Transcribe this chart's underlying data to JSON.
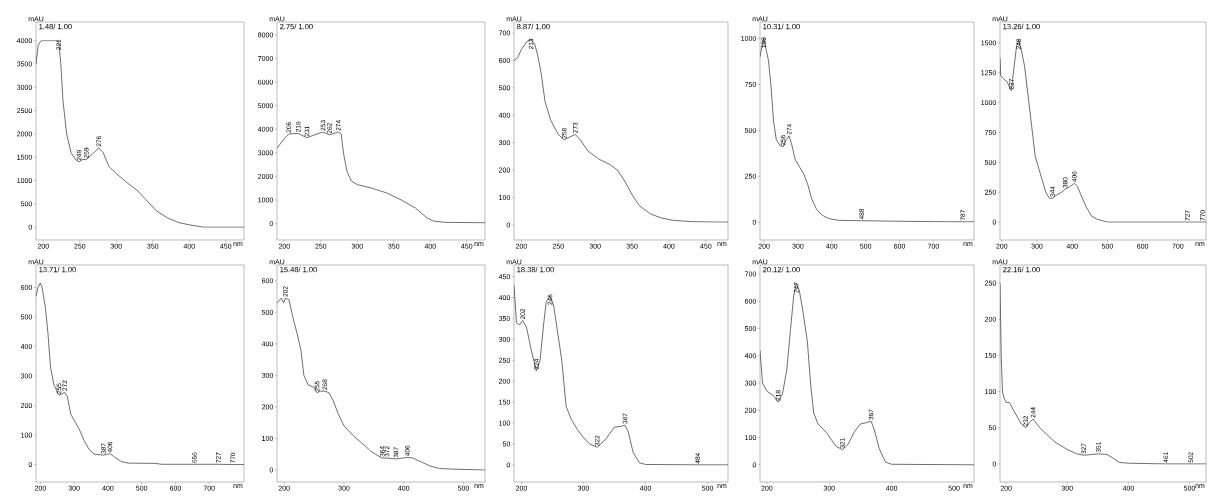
{
  "chart_data": [
    {
      "type": "line",
      "title": "1.48/ 1.00",
      "ylabel": "mAU",
      "xlabel": "nm",
      "color": "#303030",
      "xlim": [
        190,
        475
      ],
      "xticks": [
        200,
        250,
        300,
        350,
        400,
        450
      ],
      "ylim": [
        -275,
        4400
      ],
      "yticks": [
        0,
        500,
        1000,
        1500,
        2000,
        2500,
        3000,
        3500,
        4000
      ],
      "x": [
        190,
        193,
        197,
        221,
        224,
        227,
        232,
        238,
        244,
        249,
        254,
        259,
        266,
        276,
        282,
        290,
        300,
        315,
        328,
        340,
        355,
        370,
        385,
        400,
        420,
        475
      ],
      "values": [
        3500,
        3900,
        4000,
        4000,
        3500,
        2700,
        2000,
        1600,
        1450,
        1400,
        1450,
        1450,
        1550,
        1700,
        1600,
        1300,
        1150,
        950,
        800,
        600,
        350,
        200,
        100,
        50,
        0,
        0
      ],
      "annotations": [
        {
          "text": "221",
          "x": 221,
          "y": 4000
        },
        {
          "text": "249",
          "x": 249,
          "y": 1400
        },
        {
          "text": "259",
          "x": 259,
          "y": 1450
        },
        {
          "text": "276",
          "x": 276,
          "y": 1700
        }
      ]
    },
    {
      "type": "line",
      "title": "2.75/ 1.00",
      "ylabel": "mAU",
      "xlabel": "nm",
      "color": "#303030",
      "xlim": [
        190,
        475
      ],
      "xticks": [
        200,
        250,
        300,
        350,
        400,
        450
      ],
      "ylim": [
        -700,
        8550
      ],
      "yticks": [
        0,
        1000,
        2000,
        3000,
        4000,
        5000,
        6000,
        7000,
        8000
      ],
      "x": [
        190,
        200,
        206,
        219,
        231,
        245,
        253,
        262,
        274,
        278,
        281,
        286,
        292,
        300,
        320,
        340,
        360,
        380,
        395,
        405,
        420,
        475
      ],
      "values": [
        3200,
        3600,
        3800,
        3820,
        3640,
        3800,
        3880,
        3760,
        3880,
        3800,
        3000,
        2200,
        1800,
        1650,
        1500,
        1300,
        1000,
        650,
        250,
        100,
        50,
        30
      ],
      "annotations": [
        {
          "text": "206",
          "x": 206,
          "y": 3800
        },
        {
          "text": "219",
          "x": 219,
          "y": 3820
        },
        {
          "text": "231",
          "x": 231,
          "y": 3640
        },
        {
          "text": "253",
          "x": 253,
          "y": 3880
        },
        {
          "text": "262",
          "x": 262,
          "y": 3760
        },
        {
          "text": "274",
          "x": 274,
          "y": 3880
        }
      ]
    },
    {
      "type": "line",
      "title": "8.87/ 1.00",
      "ylabel": "mAU",
      "xlabel": "nm",
      "color": "#303030",
      "xlim": [
        190,
        480
      ],
      "xticks": [
        200,
        250,
        300,
        350,
        400,
        450
      ],
      "ylim": [
        -55,
        740
      ],
      "yticks": [
        0,
        100,
        200,
        300,
        400,
        500,
        600,
        700
      ],
      "x": [
        190,
        195,
        200,
        208,
        213,
        218,
        222,
        227,
        232,
        240,
        250,
        258,
        265,
        273,
        280,
        290,
        305,
        320,
        330,
        340,
        350,
        360,
        375,
        390,
        405,
        430,
        480
      ],
      "values": [
        600,
        610,
        640,
        670,
        675,
        660,
        620,
        550,
        450,
        380,
        330,
        310,
        320,
        330,
        310,
        270,
        240,
        220,
        200,
        160,
        110,
        70,
        40,
        25,
        17,
        12,
        10
      ],
      "annotations": [
        {
          "text": "213",
          "x": 213,
          "y": 675
        },
        {
          "text": "258",
          "x": 258,
          "y": 310
        },
        {
          "text": "273",
          "x": 273,
          "y": 330
        }
      ]
    },
    {
      "type": "line",
      "title": "10.31/ 1.00",
      "ylabel": "mAU",
      "xlabel": "nm",
      "color": "#303030",
      "xlim": [
        188,
        820
      ],
      "xticks": [
        200,
        300,
        400,
        500,
        600,
        700
      ],
      "ylim": [
        -97,
        1090
      ],
      "yticks": [
        0,
        250,
        500,
        750,
        1000
      ],
      "x": [
        188,
        193,
        199,
        205,
        213,
        220,
        228,
        236,
        246,
        256,
        265,
        274,
        282,
        292,
        305,
        318,
        330,
        340,
        355,
        370,
        390,
        420,
        488,
        600,
        700,
        787,
        820
      ],
      "values": [
        900,
        950,
        1000,
        950,
        880,
        750,
        550,
        450,
        420,
        410,
        450,
        470,
        420,
        340,
        300,
        260,
        200,
        130,
        70,
        40,
        20,
        10,
        8,
        5,
        3,
        2,
        2
      ],
      "annotations": [
        {
          "text": "199",
          "x": 199,
          "y": 1000
        },
        {
          "text": "256",
          "x": 256,
          "y": 410
        },
        {
          "text": "274",
          "x": 274,
          "y": 470
        },
        {
          "text": "488",
          "x": 488,
          "y": 8
        },
        {
          "text": "787",
          "x": 787,
          "y": 2
        }
      ]
    },
    {
      "type": "line",
      "title": "13.26/ 1.00",
      "ylabel": "mAU",
      "xlabel": "nm",
      "color": "#303030",
      "xlim": [
        195,
        780
      ],
      "xticks": [
        200,
        300,
        400,
        500,
        600,
        700
      ],
      "ylim": [
        -150,
        1675
      ],
      "yticks": [
        0,
        250,
        500,
        750,
        1000,
        1250,
        1500
      ],
      "x": [
        195,
        197,
        205,
        215,
        227,
        235,
        242,
        248,
        255,
        265,
        275,
        285,
        295,
        305,
        315,
        325,
        335,
        344,
        355,
        370,
        380,
        395,
        406,
        415,
        425,
        440,
        455,
        470,
        500,
        780
      ],
      "values": [
        1375,
        1225,
        1200,
        1175,
        1100,
        1300,
        1475,
        1525,
        1450,
        1300,
        1050,
        800,
        550,
        450,
        350,
        250,
        200,
        200,
        225,
        250,
        275,
        300,
        325,
        300,
        225,
        125,
        50,
        25,
        0,
        0
      ],
      "annotations": [
        {
          "text": "227",
          "x": 227,
          "y": 1100
        },
        {
          "text": "248",
          "x": 248,
          "y": 1525
        },
        {
          "text": "344",
          "x": 344,
          "y": 200
        },
        {
          "text": "380",
          "x": 380,
          "y": 275
        },
        {
          "text": "406",
          "x": 406,
          "y": 325
        },
        {
          "text": "727",
          "x": 727,
          "y": 0
        },
        {
          "text": "770",
          "x": 770,
          "y": 0
        }
      ]
    },
    {
      "type": "line",
      "title": "13.71/ 1.00",
      "ylabel": "mAU",
      "xlabel": "nm",
      "color": "#303030",
      "xlim": [
        187,
        803
      ],
      "xticks": [
        200,
        300,
        400,
        500,
        600,
        700
      ],
      "ylim": [
        -59,
        676
      ],
      "yticks": [
        0,
        100,
        200,
        300,
        400,
        500,
        600
      ],
      "x": [
        187,
        193,
        200,
        205,
        215,
        222,
        230,
        240,
        255,
        265,
        272,
        280,
        290,
        300,
        315,
        330,
        345,
        360,
        387,
        406,
        420,
        440,
        460,
        540,
        560,
        656,
        727,
        770,
        803
      ],
      "values": [
        570,
        600,
        615,
        600,
        530,
        450,
        330,
        270,
        235,
        240,
        245,
        230,
        170,
        150,
        120,
        80,
        50,
        35,
        32,
        37,
        25,
        10,
        5,
        4,
        1,
        1,
        1,
        0,
        0
      ],
      "annotations": [
        {
          "text": "255",
          "x": 255,
          "y": 235
        },
        {
          "text": "272",
          "x": 272,
          "y": 245
        },
        {
          "text": "387",
          "x": 387,
          "y": 32
        },
        {
          "text": "406",
          "x": 406,
          "y": 37
        },
        {
          "text": "656",
          "x": 656,
          "y": 1
        },
        {
          "text": "727",
          "x": 727,
          "y": 1
        },
        {
          "text": "770",
          "x": 770,
          "y": 0
        }
      ]
    },
    {
      "type": "line",
      "title": "15.48/ 1.00",
      "ylabel": "mAU",
      "xlabel": "nm",
      "color": "#303030",
      "xlim": [
        188,
        536
      ],
      "xticks": [
        200,
        300,
        400,
        500
      ],
      "ylim": [
        -38,
        650
      ],
      "yticks": [
        0,
        100,
        200,
        300,
        400,
        500,
        600
      ],
      "x": [
        188,
        195,
        199,
        202,
        208,
        215,
        222,
        228,
        233,
        240,
        250,
        255,
        260,
        268,
        275,
        282,
        290,
        300,
        315,
        330,
        345,
        357,
        364,
        372,
        387,
        406,
        415,
        430,
        445,
        460,
        480,
        536
      ],
      "values": [
        530,
        545,
        530,
        545,
        540,
        480,
        430,
        380,
        300,
        270,
        262,
        245,
        250,
        250,
        245,
        220,
        180,
        140,
        110,
        85,
        60,
        45,
        38,
        38,
        35,
        40,
        38,
        25,
        12,
        5,
        3,
        0
      ],
      "annotations": [
        {
          "text": "202",
          "x": 202,
          "y": 545
        },
        {
          "text": "255",
          "x": 255,
          "y": 245
        },
        {
          "text": "268",
          "x": 268,
          "y": 250
        },
        {
          "text": "364",
          "x": 364,
          "y": 38
        },
        {
          "text": "372",
          "x": 372,
          "y": 38
        },
        {
          "text": "387",
          "x": 387,
          "y": 35
        },
        {
          "text": "406",
          "x": 406,
          "y": 40
        }
      ]
    },
    {
      "type": "line",
      "title": "18.38/ 1.00",
      "ylabel": "mAU",
      "xlabel": "nm",
      "color": "#303030",
      "xlim": [
        188,
        533
      ],
      "xticks": [
        200,
        300,
        400,
        500
      ],
      "ylim": [
        -41,
        478
      ],
      "yticks": [
        0,
        50,
        100,
        150,
        200,
        250,
        300,
        350,
        400,
        450
      ],
      "x": [
        188,
        192,
        197,
        202,
        208,
        215,
        224,
        230,
        236,
        240,
        246,
        252,
        258,
        265,
        272,
        280,
        290,
        300,
        310,
        322,
        335,
        350,
        360,
        367,
        372,
        380,
        390,
        400,
        484,
        533
      ],
      "values": [
        430,
        340,
        335,
        345,
        330,
        280,
        225,
        250,
        340,
        390,
        405,
        380,
        320,
        250,
        140,
        110,
        85,
        65,
        50,
        42,
        60,
        90,
        92,
        95,
        80,
        30,
        5,
        1,
        0,
        0
      ],
      "annotations": [
        {
          "text": "202",
          "x": 202,
          "y": 345
        },
        {
          "text": "224",
          "x": 224,
          "y": 225
        },
        {
          "text": "246",
          "x": 246,
          "y": 405
        },
        {
          "text": "322",
          "x": 322,
          "y": 42
        },
        {
          "text": "367",
          "x": 367,
          "y": 95
        },
        {
          "text": "484",
          "x": 484,
          "y": 0
        }
      ]
    },
    {
      "type": "line",
      "title": "20.12/ 1.00",
      "ylabel": "mAU",
      "xlabel": "nm",
      "color": "#303030",
      "xlim": [
        189,
        532
      ],
      "xticks": [
        200,
        300,
        400,
        500
      ],
      "ylim": [
        -63,
        733
      ],
      "yticks": [
        0,
        100,
        200,
        300,
        400,
        500,
        600,
        700
      ],
      "x": [
        189,
        193,
        200,
        210,
        218,
        225,
        232,
        238,
        243,
        247,
        252,
        258,
        265,
        270,
        275,
        282,
        295,
        310,
        321,
        330,
        340,
        350,
        360,
        367,
        372,
        380,
        390,
        400,
        532
      ],
      "values": [
        420,
        300,
        270,
        255,
        230,
        260,
        350,
        500,
        620,
        665,
        640,
        560,
        450,
        300,
        190,
        150,
        120,
        70,
        55,
        75,
        120,
        150,
        155,
        160,
        130,
        60,
        10,
        2,
        0
      ],
      "annotations": [
        {
          "text": "218",
          "x": 218,
          "y": 230
        },
        {
          "text": "247",
          "x": 247,
          "y": 665
        },
        {
          "text": "321",
          "x": 321,
          "y": 55
        },
        {
          "text": "367",
          "x": 367,
          "y": 160
        }
      ]
    },
    {
      "type": "line",
      "title": "22.16/ 1.00",
      "ylabel": "mAU",
      "xlabel": "nm",
      "color": "#303030",
      "xlim": [
        190,
        527
      ],
      "xticks": [
        200,
        300,
        400,
        500
      ],
      "ylim": [
        -25,
        275
      ],
      "yticks": [
        0,
        50,
        100,
        150,
        200,
        250
      ],
      "x": [
        190,
        192,
        194,
        197,
        200,
        205,
        215,
        225,
        232,
        238,
        244,
        255,
        265,
        280,
        300,
        315,
        327,
        340,
        351,
        365,
        375,
        385,
        400,
        461,
        502,
        527
      ],
      "values": [
        250,
        150,
        100,
        90,
        85,
        85,
        70,
        55,
        50,
        57,
        62,
        50,
        42,
        30,
        20,
        14,
        12,
        13,
        14,
        13,
        8,
        2,
        1,
        0,
        0,
        0
      ],
      "annotations": [
        {
          "text": "232",
          "x": 232,
          "y": 50
        },
        {
          "text": "244",
          "x": 244,
          "y": 62
        },
        {
          "text": "327",
          "x": 327,
          "y": 12
        },
        {
          "text": "351",
          "x": 351,
          "y": 14
        },
        {
          "text": "461",
          "x": 461,
          "y": 0
        },
        {
          "text": "502",
          "x": 502,
          "y": 0
        }
      ]
    }
  ]
}
